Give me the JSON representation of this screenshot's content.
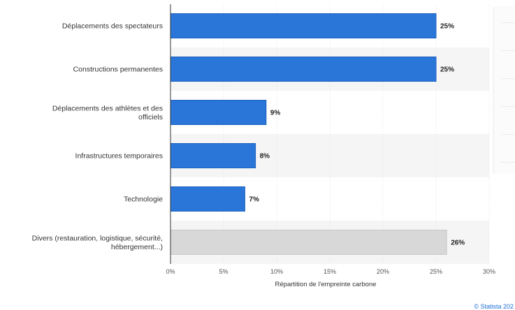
{
  "chart_data": {
    "type": "bar",
    "orientation": "horizontal",
    "categories": [
      "Déplacements des spectateurs",
      "Constructions permanentes",
      "Déplacements des athlètes et des officiels",
      "Infrastructures temporaires",
      "Technologie",
      "Divers (restauration, logistique, sécurité, hébergement...)"
    ],
    "category_lines": [
      [
        "Déplacements des spectateurs"
      ],
      [
        "Constructions permanentes"
      ],
      [
        "Déplacements des athlètes et des",
        "officiels"
      ],
      [
        "Infrastructures temporaires"
      ],
      [
        "Technologie"
      ],
      [
        "Divers (restauration, logistique, sécurité,",
        "hébergement...)"
      ]
    ],
    "values": [
      25,
      25,
      9,
      8,
      7,
      26
    ],
    "value_labels": [
      "25%",
      "25%",
      "9%",
      "8%",
      "7%",
      "26%"
    ],
    "bar_colors": [
      "#2a75d8",
      "#2a75d8",
      "#2a75d8",
      "#2a75d8",
      "#2a75d8",
      "#d8d8d8"
    ],
    "xlabel": "Répartition de l'empreinte carbone",
    "xlim": [
      0,
      30
    ],
    "xticks": [
      0,
      5,
      10,
      15,
      20,
      25,
      30
    ],
    "xtick_labels": [
      "0%",
      "5%",
      "10%",
      "15%",
      "20%",
      "25%",
      "30%"
    ],
    "grid": true,
    "alternating_row_shading": true
  },
  "footer": {
    "credit": "© Statista 202"
  },
  "colors": {
    "bar": "#2a75d8",
    "bar_highlight": "#d8d8d8",
    "row_shade": "#f5f5f5",
    "credit": "#1f6fd6"
  }
}
